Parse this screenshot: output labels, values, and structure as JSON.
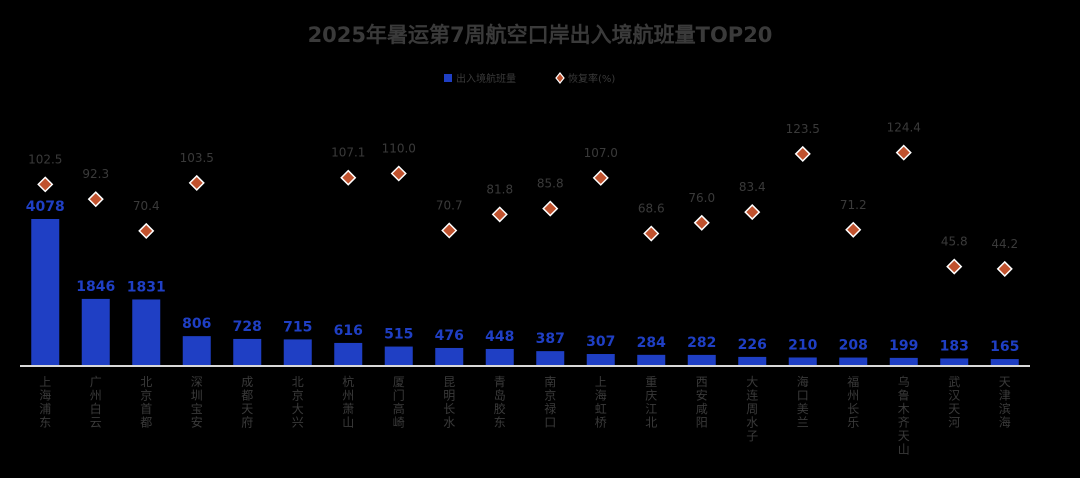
{
  "chart_data": {
    "type": "bar",
    "title": "2025年暑运第7周航空口岸出入境航班量TOP20",
    "legend_position": "top-center",
    "grid": false,
    "categories": [
      "上海浦东",
      "广州白云",
      "北京首都",
      "深圳宝安",
      "成都天府",
      "北京大兴",
      "杭州萧山",
      "厦门高崎",
      "昆明长水",
      "青岛胶东",
      "南京禄口",
      "上海虹桥",
      "重庆江北",
      "西安咸阳",
      "大连周水子",
      "海口美兰",
      "福州长乐",
      "乌鲁木齐天山",
      "武汉天河",
      "天津滨海"
    ],
    "series": [
      {
        "name": "出入境航班量",
        "type": "bar",
        "color": "#1f3fc4",
        "values": [
          4078,
          1846,
          1831,
          806,
          728,
          715,
          616,
          515,
          476,
          448,
          387,
          307,
          284,
          282,
          226,
          210,
          208,
          199,
          183,
          165
        ]
      },
      {
        "name": "恢复率(%)",
        "type": "marker",
        "color": "#c0522e",
        "values": [
          102.5,
          92.3,
          70.4,
          103.5,
          null,
          null,
          107.1,
          110.0,
          70.7,
          81.8,
          85.8,
          107.0,
          68.6,
          76.0,
          83.4,
          123.5,
          71.2,
          124.4,
          45.8,
          44.2
        ]
      }
    ]
  }
}
